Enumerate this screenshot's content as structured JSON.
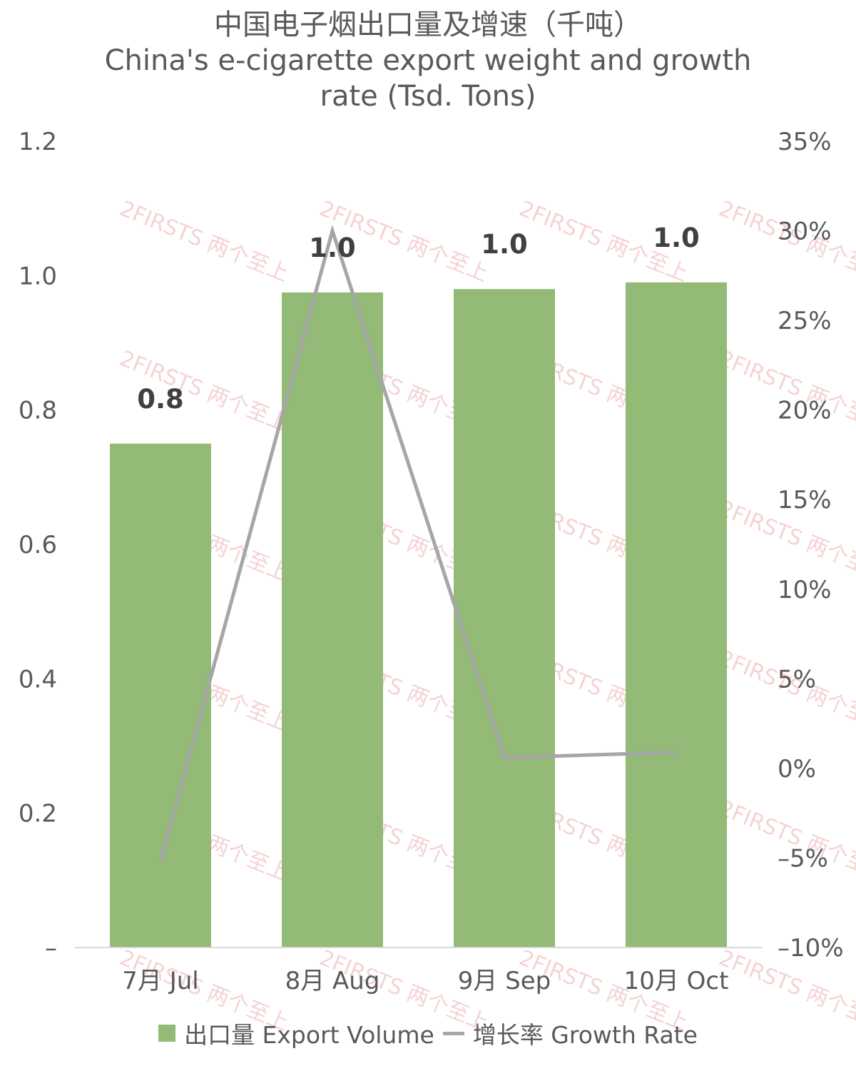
{
  "chart_data": {
    "type": "bar",
    "title": "中国电子烟出口量及增速（千吨）",
    "subtitle_line1": "China's e-cigarette export weight and growth",
    "subtitle_line2": "rate (Tsd. Tons)",
    "categories": [
      "7月 Jul",
      "8月 Aug",
      "9月 Sep",
      "10月 Oct"
    ],
    "series": [
      {
        "name": "出口量 Export Volume",
        "type": "bar",
        "axis": "left",
        "values": [
          0.75,
          0.975,
          0.98,
          0.99
        ],
        "data_labels": [
          "0.8",
          "1.0",
          "1.0",
          "1.0"
        ],
        "color": "#93ba76"
      },
      {
        "name": "增长率 Growth Rate",
        "type": "line",
        "axis": "right",
        "values": [
          -5.2,
          30.0,
          0.6,
          0.9
        ],
        "color": "#a6a6a6"
      }
    ],
    "left_axis": {
      "ylim": [
        0,
        1.2
      ],
      "ticks": [
        {
          "value": 0,
          "label": "–"
        },
        {
          "value": 0.2,
          "label": "0.2"
        },
        {
          "value": 0.4,
          "label": "0.4"
        },
        {
          "value": 0.6,
          "label": "0.6"
        },
        {
          "value": 0.8,
          "label": "0.8"
        },
        {
          "value": 1.0,
          "label": "1.0"
        },
        {
          "value": 1.2,
          "label": "1.2"
        }
      ]
    },
    "right_axis": {
      "ylim": [
        -10,
        35
      ],
      "ticks": [
        {
          "value": -10,
          "label": "–10%"
        },
        {
          "value": -5,
          "label": "–5%"
        },
        {
          "value": 0,
          "label": "0%"
        },
        {
          "value": 5,
          "label": "5%"
        },
        {
          "value": 10,
          "label": "10%"
        },
        {
          "value": 15,
          "label": "15%"
        },
        {
          "value": 20,
          "label": "20%"
        },
        {
          "value": 25,
          "label": "25%"
        },
        {
          "value": 30,
          "label": "30%"
        },
        {
          "value": 35,
          "label": "35%"
        }
      ]
    },
    "grid": false,
    "legend_position": "bottom",
    "watermark": "2FIRSTS 两个至上"
  }
}
